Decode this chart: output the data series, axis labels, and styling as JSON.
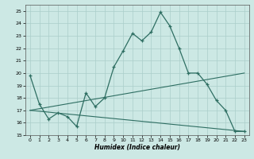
{
  "title": "",
  "xlabel": "Humidex (Indice chaleur)",
  "xlim": [
    -0.5,
    23.5
  ],
  "ylim": [
    15,
    25.5
  ],
  "yticks": [
    15,
    16,
    17,
    18,
    19,
    20,
    21,
    22,
    23,
    24,
    25
  ],
  "xticks": [
    0,
    1,
    2,
    3,
    4,
    5,
    6,
    7,
    8,
    9,
    10,
    11,
    12,
    13,
    14,
    15,
    16,
    17,
    18,
    19,
    20,
    21,
    22,
    23
  ],
  "bg_color": "#cce8e4",
  "line_color": "#2e6e62",
  "grid_color": "#aaceca",
  "line1_x": [
    0,
    1,
    2,
    3,
    4,
    5,
    6,
    7,
    8,
    9,
    10,
    11,
    12,
    13,
    14,
    15,
    16,
    17,
    18,
    19,
    20,
    21,
    22,
    23
  ],
  "line1_y": [
    19.8,
    17.5,
    16.3,
    16.8,
    16.5,
    15.7,
    18.4,
    17.3,
    18.0,
    20.5,
    21.8,
    23.2,
    22.6,
    23.3,
    24.9,
    23.8,
    22.0,
    20.0,
    20.0,
    19.1,
    17.8,
    17.0,
    15.3,
    15.3
  ],
  "line2_x": [
    0,
    23
  ],
  "line2_y": [
    17.0,
    20.0
  ],
  "line3_x": [
    0,
    23
  ],
  "line3_y": [
    17.0,
    15.3
  ]
}
